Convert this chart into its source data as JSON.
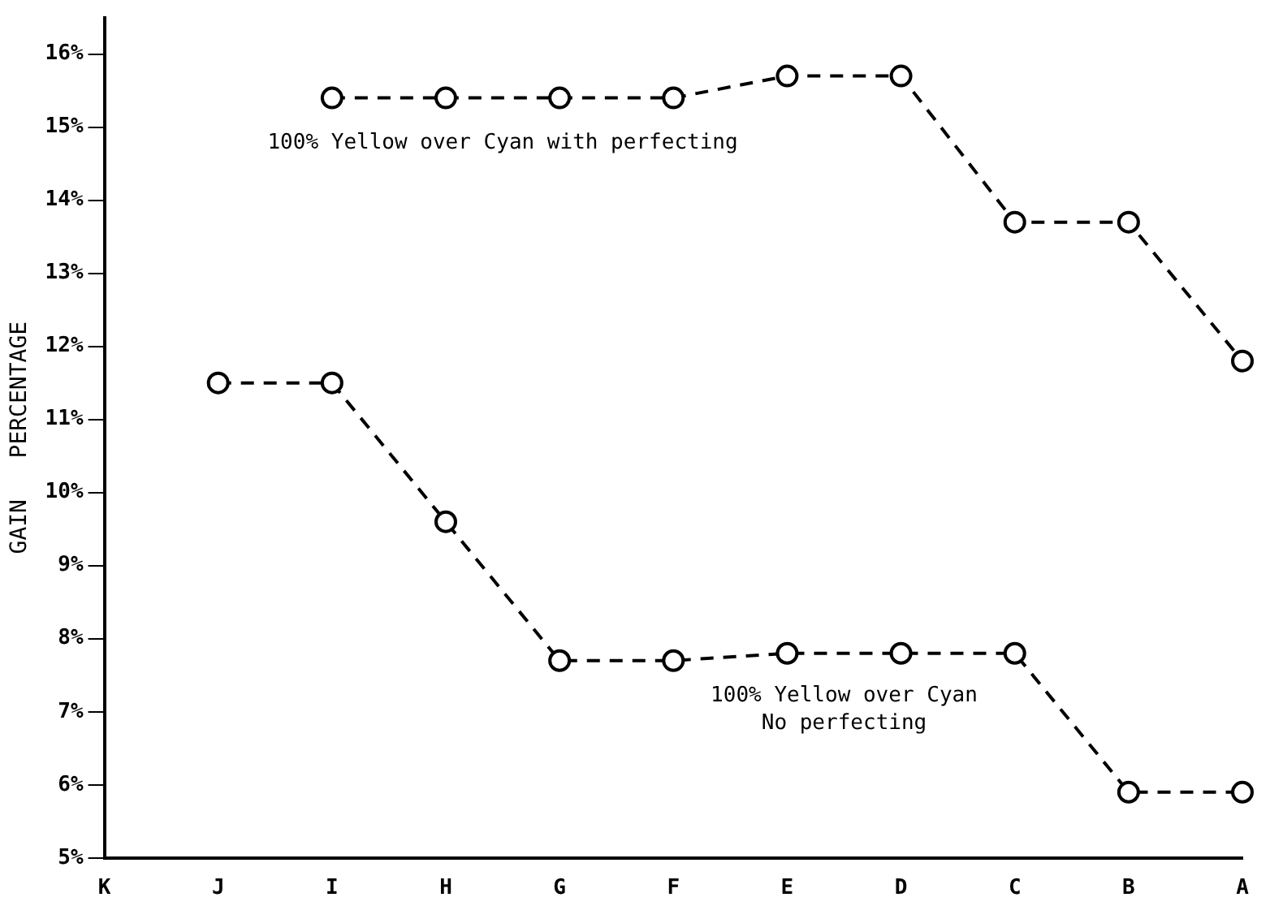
{
  "chart_data": {
    "type": "line",
    "ylabel": "GAIN   PERCENTAGE",
    "categories": [
      "K",
      "J",
      "I",
      "H",
      "G",
      "F",
      "E",
      "D",
      "C",
      "B",
      "A"
    ],
    "series": [
      {
        "name": "100% Yellow over Cyan with perfecting",
        "color": "#000000",
        "values": [
          null,
          null,
          15.4,
          15.4,
          15.4,
          15.4,
          15.7,
          15.7,
          13.7,
          13.7,
          11.8
        ]
      },
      {
        "name": "100% Yellow over Cyan\nNo perfecting",
        "color": "#000000",
        "values": [
          null,
          11.5,
          11.5,
          9.6,
          7.7,
          7.7,
          7.8,
          7.8,
          7.8,
          5.9,
          5.9
        ]
      }
    ],
    "ylim": [
      5,
      16.5
    ],
    "yticks": [
      {
        "value": 5,
        "label": "5%"
      },
      {
        "value": 6,
        "label": "6%"
      },
      {
        "value": 7,
        "label": "7%"
      },
      {
        "value": 8,
        "label": "8%"
      },
      {
        "value": 9,
        "label": "9%"
      },
      {
        "value": 10,
        "label": "10%"
      },
      {
        "value": 11,
        "label": "11%"
      },
      {
        "value": 12,
        "label": "12%"
      },
      {
        "value": 13,
        "label": "13%"
      },
      {
        "value": 14,
        "label": "14%"
      },
      {
        "value": 15,
        "label": "15%"
      },
      {
        "value": 16,
        "label": "16%"
      }
    ],
    "grid": false,
    "legend": false,
    "marker": "circle",
    "line_style": "dashed"
  }
}
